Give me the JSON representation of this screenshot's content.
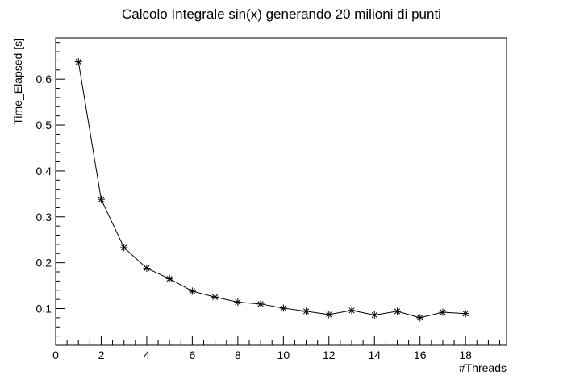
{
  "chart_data": {
    "type": "line",
    "title": "Calcolo Integrale sin(x) generando 20 milioni di punti",
    "xlabel": "#Threads",
    "ylabel": "Time_Elapsed [s]",
    "xlim": [
      0,
      19.8
    ],
    "ylim": [
      0.02,
      0.69
    ],
    "x_ticks": [
      "0",
      "2",
      "4",
      "6",
      "8",
      "10",
      "12",
      "14",
      "16",
      "18"
    ],
    "y_ticks": [
      "0.1",
      "0.2",
      "0.3",
      "0.4",
      "0.5",
      "0.6"
    ],
    "marker": "star",
    "line_color": "#000000",
    "grid": false,
    "series": [
      {
        "x": [
          1,
          2,
          3,
          4,
          5,
          6,
          7,
          8,
          9,
          10,
          11,
          12,
          13,
          14,
          15,
          16,
          17,
          18
        ],
        "values": [
          0.638,
          0.338,
          0.233,
          0.188,
          0.165,
          0.138,
          0.125,
          0.114,
          0.11,
          0.101,
          0.094,
          0.087,
          0.096,
          0.086,
          0.094,
          0.08,
          0.092,
          0.089
        ]
      }
    ]
  }
}
